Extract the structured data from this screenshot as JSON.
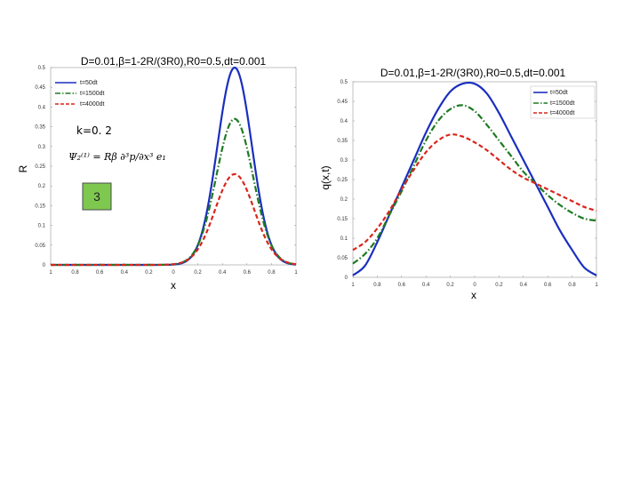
{
  "chart_data": [
    {
      "type": "line",
      "title": "D=0.01,β=1-2R/(3R0),R0=0.5,dt=0.001",
      "xlabel": "x",
      "ylabel": "R",
      "xlim": [
        -1,
        1
      ],
      "ylim": [
        0,
        0.5
      ],
      "x_ticks": [
        -1,
        -0.8,
        -0.6,
        -0.4,
        -0.2,
        0,
        0.2,
        0.4,
        0.6,
        0.8,
        1
      ],
      "x_tick_labels": [
        "1",
        "0.8",
        "0.6",
        "0.4",
        "0.2",
        "0",
        "0.2",
        "0.4",
        "0.6",
        "0.8",
        "1"
      ],
      "y_ticks": [
        0,
        0.05,
        0.1,
        0.15,
        0.2,
        0.25,
        0.3,
        0.35,
        0.4,
        0.45,
        0.5
      ],
      "y_tick_labels": [
        "0",
        "0.05",
        "0.1",
        "0.15",
        "0.2",
        "0.25",
        "0.3",
        "0.35",
        "0.4",
        "0.45",
        "0.5"
      ],
      "legend": [
        "t=50dt",
        "t=1500dt",
        "t=4000dt"
      ],
      "legend_location": "top-left",
      "series": [
        {
          "name": "t=50dt",
          "style": "solid",
          "color": "#1a2fbf",
          "peak_x": 0.5,
          "peak_y": 0.5,
          "width": 0.14
        },
        {
          "name": "t=1500dt",
          "style": "dashdot",
          "color": "#1e7a22",
          "peak_x": 0.5,
          "peak_y": 0.37,
          "width": 0.15
        },
        {
          "name": "t=4000dt",
          "style": "dashed",
          "color": "#d8261d",
          "peak_x": 0.5,
          "peak_y": 0.23,
          "width": 0.16
        }
      ]
    },
    {
      "type": "line",
      "title": "D=0.01,β=1-2R/(3R0),R0=0.5,dt=0.001",
      "xlabel": "x",
      "ylabel": "q(x,t)",
      "xlim": [
        -1,
        1
      ],
      "ylim": [
        0,
        0.5
      ],
      "x_ticks": [
        -1,
        -0.8,
        -0.6,
        -0.4,
        -0.2,
        0,
        0.2,
        0.4,
        0.6,
        0.8,
        1
      ],
      "x_tick_labels": [
        "1",
        "0.8",
        "0.6",
        "0.4",
        "0.2",
        "0",
        "0.2",
        "0.4",
        "0.6",
        "0.8",
        "1"
      ],
      "y_ticks": [
        0,
        0.05,
        0.1,
        0.15,
        0.2,
        0.25,
        0.3,
        0.35,
        0.4,
        0.45,
        0.5
      ],
      "y_tick_labels": [
        "0",
        "0.05",
        "0.1",
        "0.15",
        "0.2",
        "0.25",
        "0.3",
        "0.35",
        "0.4",
        "0.45",
        "0.5"
      ],
      "legend": [
        "t=50dt",
        "t=1500dt",
        "t=4000dt"
      ],
      "legend_location": "top-right",
      "series": [
        {
          "name": "t=50dt",
          "style": "solid",
          "color": "#1a2fbf",
          "x": [
            -1,
            -0.9,
            -0.8,
            -0.7,
            -0.6,
            -0.5,
            -0.4,
            -0.3,
            -0.2,
            -0.1,
            0,
            0.1,
            0.2,
            0.3,
            0.4,
            0.5,
            0.6,
            0.7,
            0.8,
            0.9,
            1
          ],
          "y": [
            0.005,
            0.03,
            0.09,
            0.16,
            0.23,
            0.3,
            0.37,
            0.43,
            0.475,
            0.495,
            0.495,
            0.47,
            0.42,
            0.36,
            0.3,
            0.24,
            0.18,
            0.12,
            0.07,
            0.025,
            0.005
          ]
        },
        {
          "name": "t=1500dt",
          "style": "dashdot",
          "color": "#1e7a22",
          "x": [
            -1,
            -0.9,
            -0.8,
            -0.7,
            -0.6,
            -0.5,
            -0.4,
            -0.3,
            -0.2,
            -0.1,
            0,
            0.1,
            0.2,
            0.3,
            0.4,
            0.5,
            0.6,
            0.7,
            0.8,
            0.9,
            1
          ],
          "y": [
            0.035,
            0.06,
            0.1,
            0.16,
            0.22,
            0.285,
            0.35,
            0.4,
            0.43,
            0.44,
            0.425,
            0.39,
            0.35,
            0.31,
            0.27,
            0.24,
            0.21,
            0.185,
            0.165,
            0.15,
            0.145
          ]
        },
        {
          "name": "t=4000dt",
          "style": "dashed",
          "color": "#d8261d",
          "x": [
            -1,
            -0.9,
            -0.8,
            -0.7,
            -0.6,
            -0.5,
            -0.4,
            -0.3,
            -0.2,
            -0.1,
            0,
            0.1,
            0.2,
            0.3,
            0.4,
            0.5,
            0.6,
            0.7,
            0.8,
            0.9,
            1
          ],
          "y": [
            0.07,
            0.09,
            0.125,
            0.17,
            0.225,
            0.275,
            0.32,
            0.35,
            0.365,
            0.36,
            0.345,
            0.325,
            0.3,
            0.275,
            0.255,
            0.24,
            0.225,
            0.21,
            0.195,
            0.18,
            0.17
          ]
        }
      ]
    }
  ],
  "annotations": {
    "k_label": "k=0. 2",
    "formula": "Ψ₂⁽¹⁾ = Rβ ∂³p/∂x³ e₁",
    "badge": "3"
  },
  "colors": {
    "badge_fill": "#7ec850",
    "badge_border": "#4a4a4a"
  }
}
